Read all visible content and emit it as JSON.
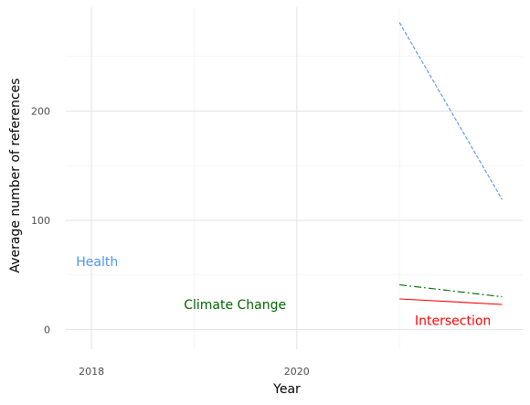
{
  "chart_data": {
    "type": "line",
    "title": "",
    "xlabel": "Year",
    "ylabel": "Average number of references",
    "xlim": [
      2017.75,
      2022.2
    ],
    "ylim": [
      -18,
      295
    ],
    "x_ticks": [
      2018,
      2020
    ],
    "x_minor_ticks": [
      2019,
      2021
    ],
    "y_ticks": [
      0,
      100,
      200
    ],
    "y_minor_ticks": [
      50,
      150,
      250
    ],
    "grid": true,
    "legend": "none",
    "series": [
      {
        "name": "Health",
        "color": "#4e95f0",
        "dash": "dashed",
        "x": [
          2021,
          2022
        ],
        "y": [
          281,
          119
        ]
      },
      {
        "name": "Climate Change",
        "color": "#006400",
        "dash": "dashdot",
        "x": [
          2021,
          2022
        ],
        "y": [
          41,
          30
        ]
      },
      {
        "name": "Intersection",
        "color": "#ff0000",
        "dash": "solid",
        "x": [
          2021,
          2022
        ],
        "y": [
          28,
          23
        ]
      }
    ],
    "series_labels": [
      {
        "text": "Health",
        "x": 2017.85,
        "y": 58,
        "color": "#4e95f0"
      },
      {
        "text": "Climate Change",
        "x": 2018.9,
        "y": 19,
        "color": "#006400"
      },
      {
        "text": "Intersection",
        "x": 2021.15,
        "y": 4,
        "color": "#ff0000"
      }
    ]
  }
}
